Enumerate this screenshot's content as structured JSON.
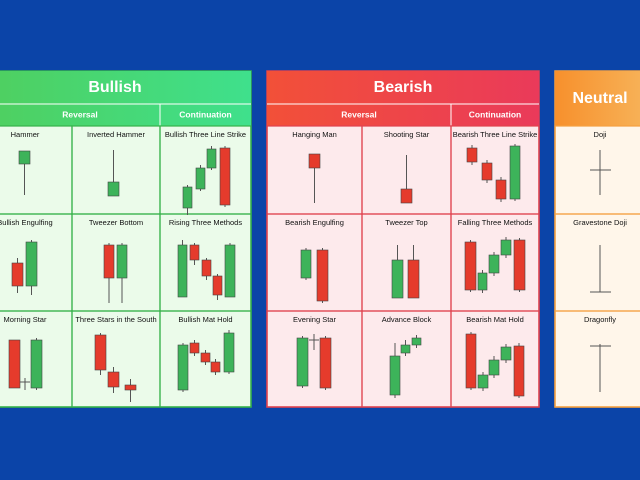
{
  "panels": [
    {
      "title": "Bullish",
      "sections": [
        "Reversal",
        "Continuation"
      ],
      "cells": [
        "Hammer",
        "Inverted Hammer",
        "Bullish Three Line Strike",
        "Bullish Engulfing",
        "Tweezer Bottom",
        "Rising Three Methods",
        "Morning Star",
        "Three Stars in the South",
        "Bullish Mat Hold"
      ]
    },
    {
      "title": "Bearish",
      "sections": [
        "Reversal",
        "Continuation"
      ],
      "cells": [
        "Hanging Man",
        "Shooting Star",
        "Bearish Three Line Strike",
        "Bearish Engulfing",
        "Tweezer Top",
        "Falling Three Methods",
        "Evening Star",
        "Advance Block",
        "Bearish Mat Hold"
      ]
    },
    {
      "title": "Neutral",
      "cells": [
        "Doji",
        "Gravestone Doji",
        "Dragonfly"
      ]
    }
  ]
}
